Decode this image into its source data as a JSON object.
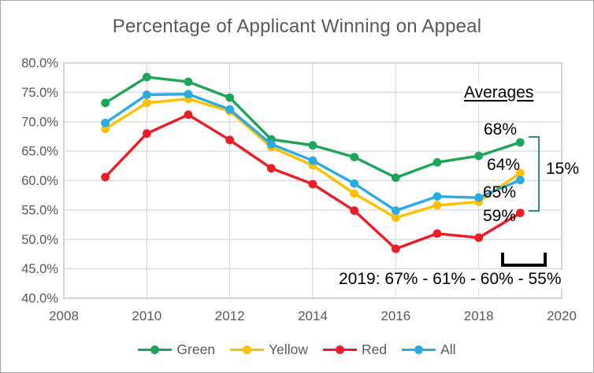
{
  "title": "Percentage of Applicant Winning on Appeal",
  "chart_data": {
    "type": "line",
    "title": "Percentage of Applicant Winning on Appeal",
    "x": [
      2009,
      2010,
      2011,
      2012,
      2013,
      2014,
      2015,
      2016,
      2017,
      2018,
      2019
    ],
    "series": [
      {
        "name": "Green",
        "color": "#1DA559",
        "values": [
          73.2,
          77.6,
          76.8,
          74.1,
          67.0,
          66.0,
          64.0,
          60.5,
          63.1,
          64.2,
          66.5
        ]
      },
      {
        "name": "Yellow",
        "color": "#FFC000",
        "values": [
          68.8,
          73.2,
          73.9,
          71.8,
          65.7,
          62.6,
          57.8,
          53.7,
          55.8,
          56.4,
          61.3
        ]
      },
      {
        "name": "Red",
        "color": "#EE1C25",
        "values": [
          60.6,
          68.0,
          71.2,
          66.9,
          62.1,
          59.4,
          54.9,
          48.4,
          51.0,
          50.3,
          54.5
        ]
      },
      {
        "name": "All",
        "color": "#2AABE4",
        "values": [
          69.8,
          74.6,
          74.7,
          72.1,
          66.2,
          63.4,
          59.5,
          54.9,
          57.3,
          57.1,
          60.1
        ]
      }
    ],
    "x_ticks": [
      2008,
      2010,
      2012,
      2014,
      2016,
      2018,
      2020
    ],
    "y_ticks": [
      "80.0%",
      "75.0%",
      "70.0%",
      "65.0%",
      "60.0%",
      "55.0%",
      "50.0%",
      "45.0%",
      "40.0%"
    ],
    "x_range": [
      2008,
      2020
    ],
    "y_range": [
      40,
      80
    ],
    "grid": true,
    "legend_position": "bottom",
    "grid_color": "#D9D9D9",
    "border_color": "#BFBFBF",
    "tick_color": "#595959"
  },
  "annotations": {
    "averages_heading": "Averages",
    "average_green": "68%",
    "average_yellow": "64%",
    "average_all": "65%",
    "average_red": "59%",
    "spread": "15%",
    "note_2019": "2019: 67% - 61% - 60% - 55%"
  },
  "colors": {
    "spread_bracket": "#2E8B98",
    "range_bracket": "#000000",
    "title_text": "#595959"
  }
}
